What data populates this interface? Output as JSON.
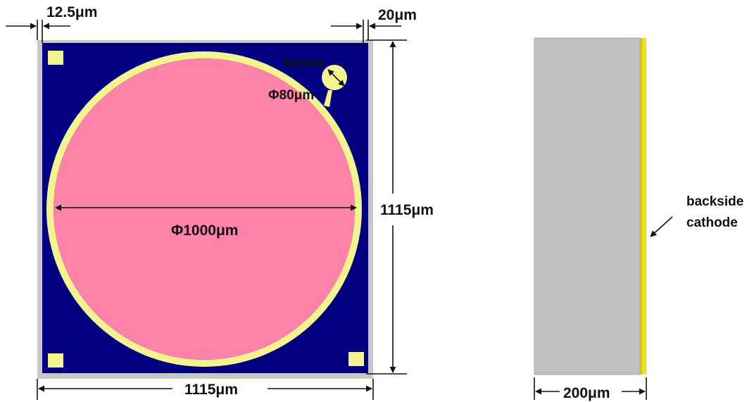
{
  "front_view": {
    "dim_left_margin": "12.5μm",
    "dim_right_margin": "20μm",
    "label_anode": "Anode",
    "label_anode_diameter": "Φ80μm",
    "label_circle_diameter": "Φ1000μm",
    "dim_height": "1115μm",
    "dim_width": "1115μm"
  },
  "side_view": {
    "dim_thickness": "200μm",
    "label_cathode_line1": "backside",
    "label_cathode_line2": "cathode"
  },
  "colors": {
    "frame": "#c8c8c8",
    "substrate": "#000080",
    "ring": "#f4f48e",
    "active_area": "#ff82a8",
    "side_body": "#c0c0c0",
    "cathode": "#f5e020"
  }
}
